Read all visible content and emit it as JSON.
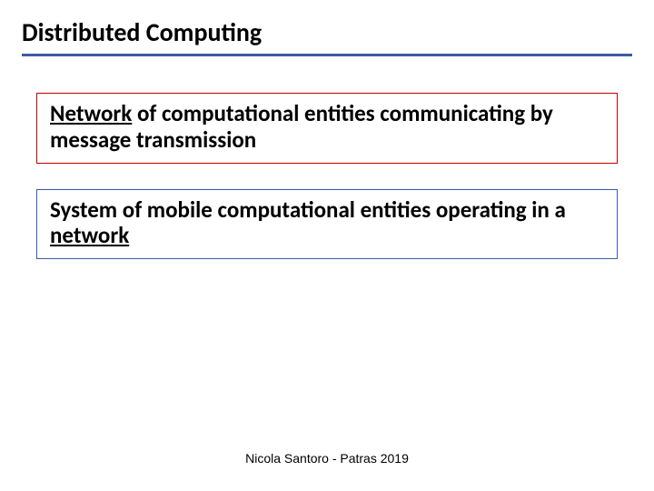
{
  "title": "Distributed Computing",
  "box1": {
    "border_color": "#c00000",
    "lead_word": "Network",
    "rest": " of computational entities communicating by message transmission"
  },
  "box2": {
    "border_color": "#3b5ba5",
    "before": "System of mobile computational entities operating in a ",
    "underlined": "network"
  },
  "footer": "Nicola Santoro - Patras 2019",
  "colors": {
    "rule": "#3b5ba5",
    "text": "#000000",
    "background": "#ffffff"
  },
  "typography": {
    "title_fontsize": 28,
    "box_fontsize": 25,
    "footer_fontsize": 14,
    "font_family": "Calibri, Arial, sans-serif",
    "weight": "700"
  }
}
